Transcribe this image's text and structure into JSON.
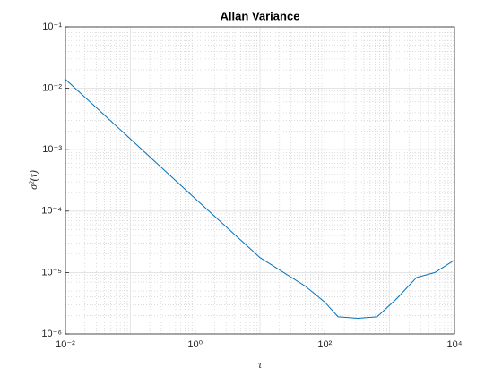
{
  "chart_data": {
    "type": "line",
    "title": "Allan Variance",
    "xlabel": "τ",
    "ylabel": "σ²(τ)",
    "x": [
      0.01,
      0.1,
      1,
      10,
      50,
      100,
      160,
      320,
      640,
      1300,
      2600,
      5000,
      10000
    ],
    "values": [
      0.014,
      0.0015,
      0.00016,
      1.75e-05,
      6e-06,
      3.3e-06,
      1.9e-06,
      1.8e-06,
      1.9e-06,
      3.8e-06,
      8.3e-06,
      1e-05,
      1.6e-05
    ],
    "color": "#0072bd",
    "xscale": "log",
    "yscale": "log",
    "xlim": [
      0.01,
      10000
    ],
    "ylim": [
      1e-06,
      0.1
    ],
    "xticks": [
      {
        "value": 0.01,
        "label": "10⁻²"
      },
      {
        "value": 1,
        "label": "10⁰"
      },
      {
        "value": 100,
        "label": "10²"
      },
      {
        "value": 10000,
        "label": "10⁴"
      }
    ],
    "yticks": [
      {
        "value": 1e-06,
        "label": "10⁻⁶"
      },
      {
        "value": 1e-05,
        "label": "10⁻⁵"
      },
      {
        "value": 0.0001,
        "label": "10⁻⁴"
      },
      {
        "value": 0.001,
        "label": "10⁻³"
      },
      {
        "value": 0.01,
        "label": "10⁻²"
      },
      {
        "value": 0.1,
        "label": "10⁻¹"
      }
    ],
    "grid": true,
    "minor_grid": true
  }
}
